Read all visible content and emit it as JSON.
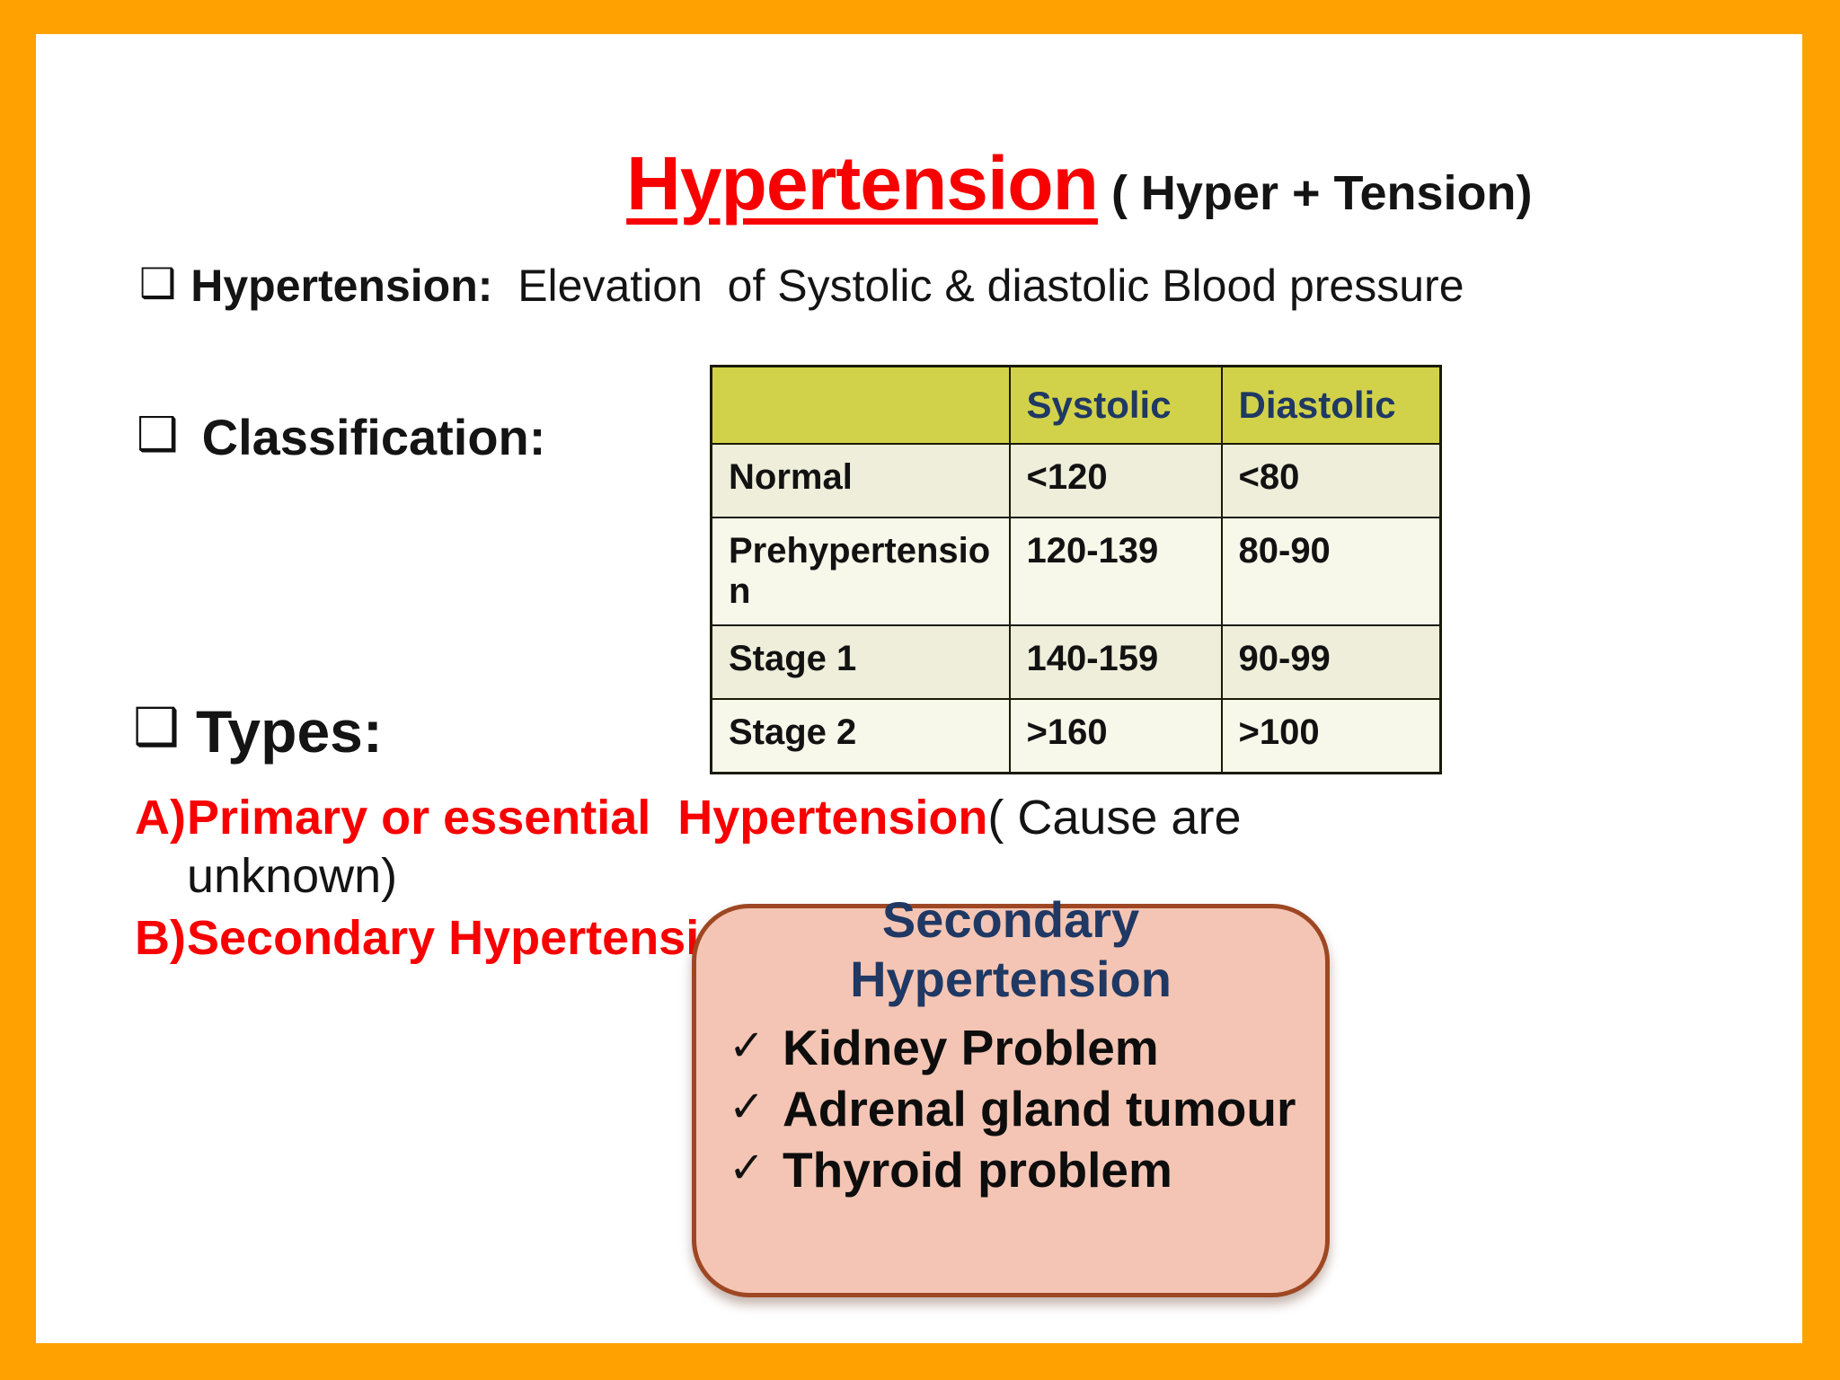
{
  "title": {
    "main": "Hypertension",
    "suffix": " ( Hyper + Tension)"
  },
  "icons": {
    "ballot_square": "❑",
    "check": "✓"
  },
  "definition": {
    "label": "Hypertension:",
    "text": "  Elevation  of Systolic & diastolic Blood pressure"
  },
  "classification": {
    "label": "Classification:"
  },
  "types_heading": {
    "label": "Types:"
  },
  "types_list": [
    {
      "marker": "A)",
      "emphasis": "Primary or essential  Hypertension",
      "note": "( Cause are unknown)"
    },
    {
      "marker": "B)",
      "emphasis": "Secondary Hypertension",
      "note": ""
    }
  ],
  "table": {
    "headers": {
      "label": "",
      "systolic": "Systolic",
      "diastolic": "Diastolic"
    },
    "rows": [
      {
        "label": "Normal",
        "systolic": "<120",
        "diastolic": "<80"
      },
      {
        "label": "Prehypertension",
        "systolic": "120-139",
        "diastolic": "80-90"
      },
      {
        "label": "Stage 1",
        "systolic": "140-159",
        "diastolic": "90-99"
      },
      {
        "label": "Stage 2",
        "systolic": ">160",
        "diastolic": ">100"
      }
    ]
  },
  "callout": {
    "title": "Secondary Hypertension",
    "items": [
      "Kidney Problem",
      "Adrenal gland tumour",
      "Thyroid problem"
    ]
  },
  "colors": {
    "frame_orange": "#FFA101",
    "title_red": "#F80000",
    "navy": "#1F3864",
    "table_header_green": "#D2D24A",
    "table_row_dark": "#EEEEDB",
    "table_row_light": "#F7F7EA",
    "callout_fill": "#F4C5B4",
    "callout_border": "#9E4723"
  }
}
